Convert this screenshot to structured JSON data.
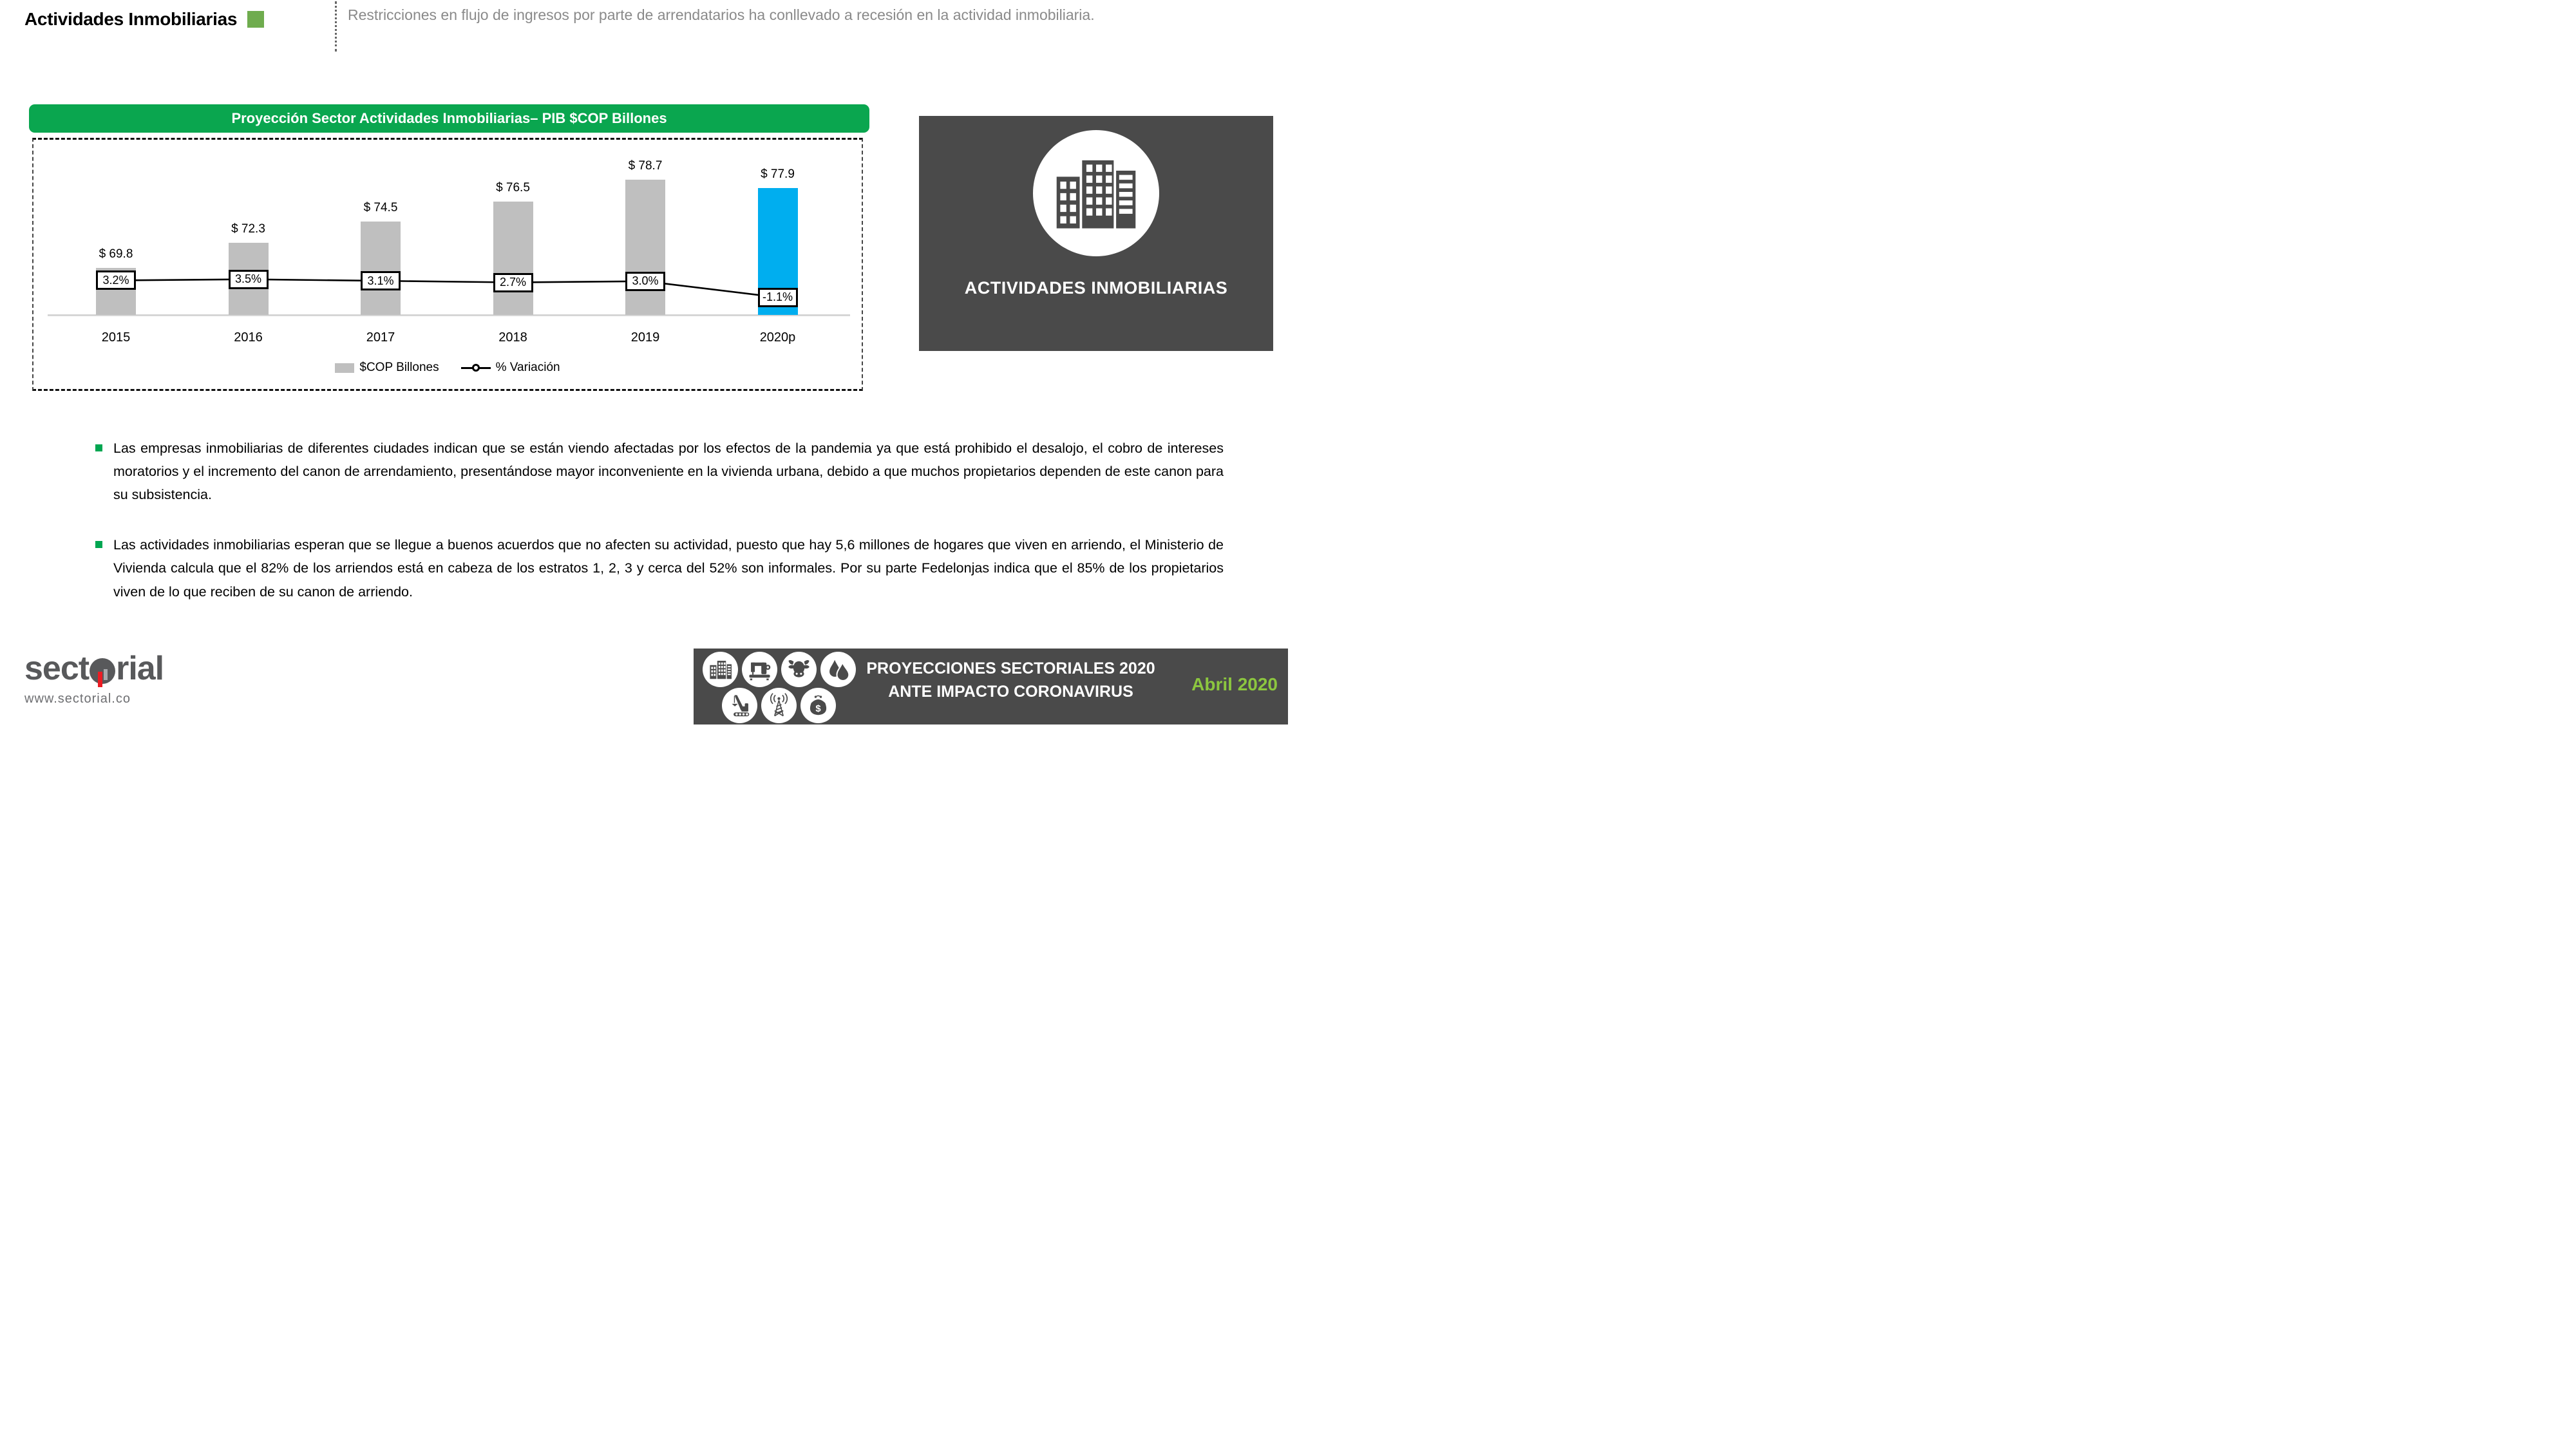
{
  "header": {
    "title": "Actividades Inmobiliarias",
    "subtitle": "Restricciones en flujo de ingresos por parte de arrendatarios ha conllevado a recesión en la actividad inmobiliaria."
  },
  "chart": {
    "title": "Proyección Sector Actividades Inmobiliarias– PIB $COP Billones",
    "legend": {
      "bars": "$COP Billones",
      "line": "% Variación"
    }
  },
  "chart_data": {
    "type": "bar",
    "categories": [
      "2015",
      "2016",
      "2017",
      "2018",
      "2019",
      "2020p"
    ],
    "series": [
      {
        "name": "$COP Billones",
        "type": "bar",
        "values": [
          69.8,
          72.3,
          74.5,
          76.5,
          78.7,
          77.9
        ],
        "labels": [
          "$ 69.8",
          "$ 72.3",
          "$ 74.5",
          "$ 76.5",
          "$ 78.7",
          "$ 77.9"
        ]
      },
      {
        "name": "% Variación",
        "type": "line",
        "values": [
          3.2,
          3.5,
          3.1,
          2.7,
          3.0,
          -1.1
        ],
        "labels": [
          "3.2%",
          "3.5%",
          "3.1%",
          "2.7%",
          "3.0%",
          "-1.1%"
        ]
      }
    ],
    "title": "Proyección Sector Actividades Inmobiliarias– PIB $COP Billones",
    "xlabel": "",
    "ylabel": "",
    "highlight_category": "2020p",
    "legend_position": "bottom",
    "grid": false
  },
  "side_panel": {
    "label": "ACTIVIDADES INMOBILIARIAS"
  },
  "bullets": [
    "Las empresas inmobiliarias de diferentes ciudades indican que se están viendo afectadas por los efectos de la pandemia ya que está prohibido el desalojo, el cobro de intereses moratorios y el incremento del canon de arrendamiento, presentándose mayor inconveniente en la vivienda urbana, debido a que muchos propietarios dependen de este canon para su subsistencia.",
    "Las actividades inmobiliarias esperan que se llegue a buenos acuerdos que no afecten su actividad, puesto que hay 5,6 millones de hogares que viven en arriendo, el Ministerio de Vivienda calcula que el 82% de los arriendos está en cabeza de los estratos 1, 2, 3 y cerca del 52% son informales. Por su parte Fedelonjas indica que el 85% de los propietarios viven de lo que reciben de su canon de arriendo."
  ],
  "footer": {
    "logo": {
      "prefix": "sect",
      "suffix": "rial",
      "full": "sectorial"
    },
    "website": "www.sectorial.co",
    "banner_line1": "PROYECCIONES SECTORIALES 2020",
    "banner_line2": "ANTE IMPACTO CORONAVIRUS",
    "date": "Abril 2020",
    "icon_names": [
      "buildings-icon",
      "sewing-machine-icon",
      "cow-icon",
      "water-drops-icon",
      "crane-icon",
      "antenna-tower-icon",
      "coin-purse-icon"
    ]
  },
  "colors": {
    "accent_green": "#0AA64F",
    "title_square_green": "#6FAC4E",
    "bullet_green": "#00A651",
    "date_green": "#8CC63F",
    "highlight_blue": "#00AEEF",
    "bar_gray": "#BFBFBF",
    "panel_dark": "#4A4A4A",
    "logo_gray": "#58595B",
    "logo_red": "#EC1C24",
    "subtitle_gray": "#8A8A8A"
  }
}
